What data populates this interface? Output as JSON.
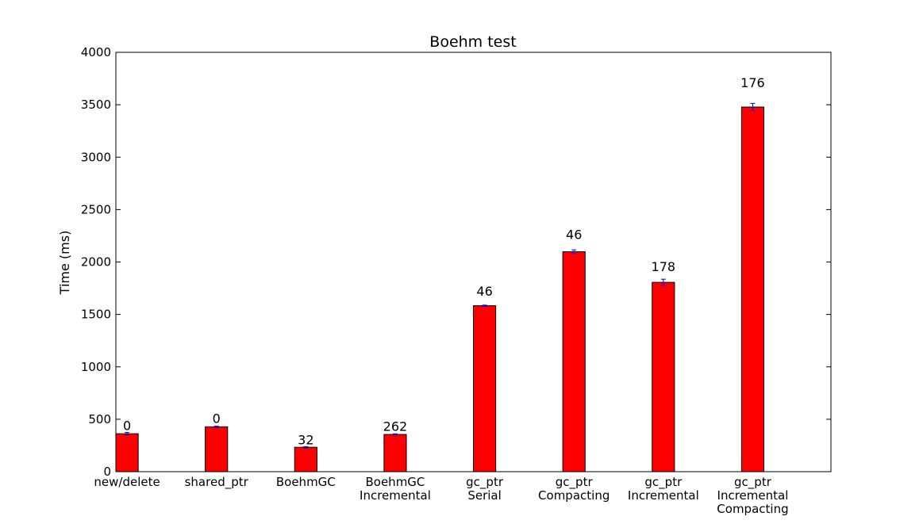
{
  "chart_data": {
    "type": "bar",
    "title": "Boehm test",
    "xlabel": "",
    "ylabel": "Time (ms)",
    "ylim": [
      0,
      4000
    ],
    "yticks": [
      "0",
      "500",
      "1000",
      "1500",
      "2000",
      "2500",
      "3000",
      "3500",
      "4000"
    ],
    "categories": [
      "new/delete",
      "shared_ptr",
      "BoehmGC",
      "BoehmGC\nIncremental",
      "gc_ptr\nSerial",
      "gc_ptr\nCompacting",
      "gc_ptr\nIncremental",
      "gc_ptr\nIncremental\nCompacting"
    ],
    "values": [
      362,
      428,
      233,
      355,
      1583,
      2098,
      1806,
      3478
    ],
    "errors": [
      12,
      6,
      6,
      6,
      6,
      18,
      30,
      35
    ],
    "bar_labels": [
      "0",
      "0",
      "32",
      "262",
      "46",
      "46",
      "178",
      "176"
    ],
    "colors": {
      "bar": "#ff0000",
      "error": "#0000ff",
      "axis": "#000000"
    },
    "grid": false
  }
}
